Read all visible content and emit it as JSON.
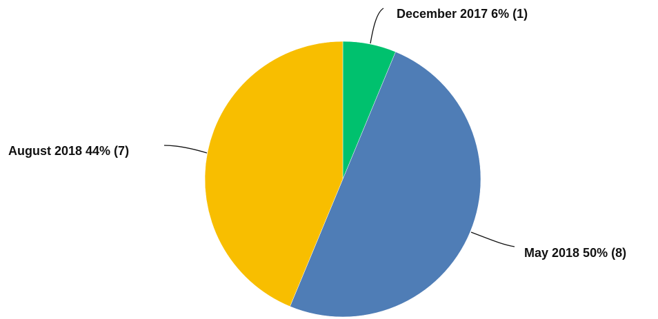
{
  "chart_data": {
    "type": "pie",
    "title": "",
    "slices": [
      {
        "label": "December 2017 6% (1)",
        "category": "December 2017",
        "value": 1,
        "percent": 6,
        "color": "#00C16E"
      },
      {
        "label": "May 2018 50% (8)",
        "category": "May 2018",
        "value": 8,
        "percent": 50,
        "color": "#4F7DB6"
      },
      {
        "label": "August 2018 44% (7)",
        "category": "August 2018",
        "value": 7,
        "percent": 44,
        "color": "#F8BE00"
      }
    ],
    "legend": "none",
    "labels": "outside-with-leader-lines"
  }
}
